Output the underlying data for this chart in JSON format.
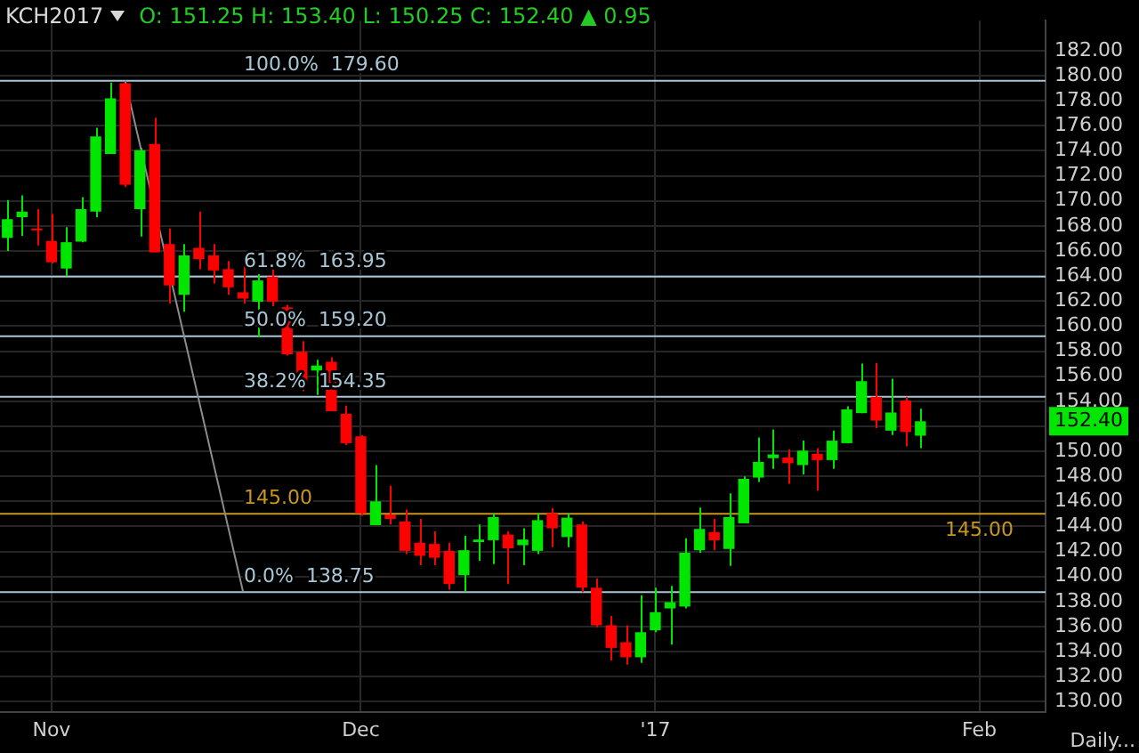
{
  "chart_data": {
    "type": "candlestick",
    "title": "KCH2017",
    "subtitle": "O: 151.25 H: 153.40 L: 150.25 C: 152.40 ▲ 0.95",
    "categories": [
      null,
      null,
      null,
      "Nov",
      null,
      null,
      null,
      null,
      null,
      null,
      null,
      null,
      null,
      null,
      null,
      null,
      null,
      null,
      null,
      null,
      null,
      null,
      null,
      null,
      "Dec",
      null,
      null,
      null,
      null,
      null,
      null,
      null,
      null,
      null,
      null,
      null,
      null,
      null,
      null,
      null,
      null,
      null,
      null,
      null,
      "'17",
      null,
      null,
      null,
      null,
      null,
      null,
      null,
      null,
      null,
      null,
      null,
      null,
      null,
      null,
      null,
      null,
      null,
      null,
      null,
      null,
      null,
      "Feb",
      null,
      null,
      null,
      null
    ],
    "ohlc": [
      [
        167.05,
        170.05,
        166.0,
        168.55
      ],
      [
        168.7,
        170.45,
        167.2,
        169.15
      ],
      [
        167.75,
        169.35,
        166.45,
        167.65
      ],
      [
        166.8,
        168.95,
        165.0,
        165.1
      ],
      [
        164.6,
        167.9,
        164.0,
        166.7
      ],
      [
        166.75,
        170.3,
        166.7,
        169.35
      ],
      [
        169.15,
        175.85,
        168.7,
        175.15
      ],
      [
        173.75,
        179.45,
        173.75,
        178.2
      ],
      [
        179.4,
        179.6,
        171.1,
        171.3
      ],
      [
        169.35,
        174.25,
        167.15,
        174.05
      ],
      [
        174.55,
        176.65,
        165.9,
        165.9
      ],
      [
        166.55,
        167.8,
        161.8,
        163.25
      ],
      [
        162.5,
        166.55,
        161.15,
        165.65
      ],
      [
        166.25,
        169.15,
        164.55,
        165.35
      ],
      [
        165.65,
        166.55,
        163.4,
        164.45
      ],
      [
        164.55,
        165.2,
        162.5,
        163.1
      ],
      [
        162.7,
        165.2,
        161.8,
        162.2
      ],
      [
        161.95,
        164.15,
        159.1,
        163.65
      ],
      [
        163.95,
        164.55,
        161.6,
        161.95
      ],
      [
        161.5,
        161.7,
        157.65,
        157.75
      ],
      [
        157.95,
        158.8,
        154.8,
        155.55
      ],
      [
        156.45,
        157.3,
        154.5,
        156.85
      ],
      [
        157.15,
        157.5,
        153.2,
        153.2
      ],
      [
        153.0,
        153.65,
        150.5,
        150.65
      ],
      [
        151.2,
        151.3,
        144.85,
        145.05
      ],
      [
        144.1,
        148.9,
        144.1,
        146.0
      ],
      [
        144.95,
        147.25,
        144.15,
        144.6
      ],
      [
        144.4,
        145.35,
        141.8,
        142.05
      ],
      [
        142.7,
        144.6,
        140.9,
        141.65
      ],
      [
        142.6,
        143.6,
        140.9,
        141.5
      ],
      [
        142.05,
        142.7,
        138.95,
        139.4
      ],
      [
        140.1,
        143.25,
        138.8,
        142.1
      ],
      [
        142.75,
        144.15,
        141.25,
        142.95
      ],
      [
        142.9,
        145.05,
        141.0,
        144.75
      ],
      [
        143.35,
        143.6,
        139.4,
        142.25
      ],
      [
        142.5,
        143.85,
        140.9,
        142.95
      ],
      [
        142.05,
        145.05,
        141.8,
        144.5
      ],
      [
        145.05,
        145.45,
        142.35,
        143.85
      ],
      [
        143.15,
        145.05,
        142.35,
        144.7
      ],
      [
        144.15,
        144.4,
        138.75,
        139.1
      ],
      [
        139.1,
        139.85,
        135.95,
        136.1
      ],
      [
        136.1,
        136.85,
        133.3,
        134.3
      ],
      [
        134.75,
        136.1,
        132.95,
        133.55
      ],
      [
        133.55,
        138.5,
        133.1,
        135.55
      ],
      [
        135.7,
        139.1,
        135.55,
        137.15
      ],
      [
        137.45,
        139.25,
        134.55,
        137.95
      ],
      [
        137.6,
        143.05,
        137.45,
        141.9
      ],
      [
        142.1,
        145.5,
        141.9,
        143.8
      ],
      [
        143.55,
        144.6,
        142.1,
        142.9
      ],
      [
        142.2,
        146.65,
        140.85,
        144.75
      ],
      [
        144.25,
        148.0,
        144.25,
        147.8
      ],
      [
        147.9,
        151.1,
        147.55,
        149.15
      ],
      [
        149.45,
        151.75,
        148.6,
        149.75
      ],
      [
        149.5,
        150.15,
        147.4,
        149.05
      ],
      [
        148.9,
        150.85,
        148.15,
        150.05
      ],
      [
        149.8,
        150.25,
        146.85,
        149.3
      ],
      [
        149.3,
        151.65,
        148.6,
        150.85
      ],
      [
        150.65,
        153.6,
        150.65,
        153.35
      ],
      [
        153.05,
        157.0,
        153.05,
        155.6
      ],
      [
        154.35,
        157.05,
        151.85,
        152.45
      ],
      [
        151.65,
        155.8,
        151.3,
        153.1
      ],
      [
        154.05,
        154.35,
        150.4,
        151.55
      ],
      [
        151.25,
        153.4,
        150.25,
        152.4
      ],
      null,
      null,
      null,
      null,
      null,
      null,
      null,
      null
    ],
    "colors": [
      "#00e600",
      "#00e600",
      "#ff0000",
      "#ff0000",
      "#00e600",
      "#00e600",
      "#00e600",
      "#00e600",
      "#ff0000",
      "#00e600",
      "#ff0000",
      "#ff0000",
      "#00e600",
      "#ff0000",
      "#ff0000",
      "#ff0000",
      "#ff0000",
      "#00e600",
      "#ff0000",
      "#ff0000",
      "#ff0000",
      "#00e600",
      "#ff0000",
      "#ff0000",
      "#ff0000",
      "#00e600",
      "#ff0000",
      "#ff0000",
      "#ff0000",
      "#ff0000",
      "#ff0000",
      "#00e600",
      "#00e600",
      "#00e600",
      "#ff0000",
      "#00e600",
      "#00e600",
      "#ff0000",
      "#00e600",
      "#ff0000",
      "#ff0000",
      "#ff0000",
      "#ff0000",
      "#00e600",
      "#00e600",
      "#00e600",
      "#00e600",
      "#00e600",
      "#ff0000",
      "#00e600",
      "#00e600",
      "#00e600",
      "#00e600",
      "#ff0000",
      "#00e600",
      "#ff0000",
      "#00e600",
      "#00e600",
      "#00e600",
      "#ff0000",
      "#00e600",
      "#ff0000",
      "#00e600",
      null,
      null,
      null,
      null,
      null,
      null,
      null,
      null
    ],
    "series": [
      {
        "type": "line",
        "color": "#8c8c8c",
        "values": [
          null,
          null,
          null,
          null,
          null,
          null,
          null,
          null,
          179.6,
          null,
          null,
          null,
          null,
          null,
          null,
          null,
          138.8,
          null,
          null,
          null,
          null,
          null,
          null,
          null,
          null,
          null,
          null,
          null,
          null,
          null,
          null,
          null,
          null,
          null,
          null,
          null,
          null,
          null,
          null,
          null,
          null,
          null,
          null,
          null,
          null,
          null,
          null,
          null,
          null,
          null,
          null,
          null,
          null,
          null,
          null,
          null,
          null,
          null,
          null,
          null,
          null,
          null,
          null,
          null,
          null,
          null,
          null,
          null,
          null,
          null,
          null
        ]
      }
    ],
    "ylim": [
      129.2,
      184.4
    ],
    "yticks": [
      {
        "value": 130,
        "label": "130.00"
      },
      {
        "value": 132,
        "label": "132.00"
      },
      {
        "value": 134,
        "label": "134.00"
      },
      {
        "value": 136,
        "label": "136.00"
      },
      {
        "value": 138,
        "label": "138.00"
      },
      {
        "value": 140,
        "label": "140.00"
      },
      {
        "value": 142,
        "label": "142.00"
      },
      {
        "value": 144,
        "label": "144.00"
      },
      {
        "value": 146,
        "label": "146.00"
      },
      {
        "value": 148,
        "label": "148.00"
      },
      {
        "value": 150,
        "label": "150.00"
      },
      {
        "value": 152,
        "label": null
      },
      {
        "value": 154,
        "label": "154.00"
      },
      {
        "value": 156,
        "label": "156.00"
      },
      {
        "value": 158,
        "label": "158.00"
      },
      {
        "value": 160,
        "label": "160.00"
      },
      {
        "value": 162,
        "label": "162.00"
      },
      {
        "value": 164,
        "label": "164.00"
      },
      {
        "value": 166,
        "label": "166.00"
      },
      {
        "value": 168,
        "label": "168.00"
      },
      {
        "value": 170,
        "label": "170.00"
      },
      {
        "value": 172,
        "label": "172.00"
      },
      {
        "value": 174,
        "label": "174.00"
      },
      {
        "value": 176,
        "label": "176.00"
      },
      {
        "value": 178,
        "label": "178.00"
      },
      {
        "value": 180,
        "label": "180.00"
      },
      {
        "value": 182,
        "label": "182.00"
      }
    ],
    "ref_lines": [
      {
        "axis": "y",
        "value": 179.6,
        "label": "100.0%  179.60",
        "color": "#a9c6d6"
      },
      {
        "axis": "y",
        "value": 163.95,
        "label": "61.8%  163.95",
        "color": "#a9c6d6"
      },
      {
        "axis": "y",
        "value": 159.2,
        "label": "50.0%  159.20",
        "color": "#a9c6d6"
      },
      {
        "axis": "y",
        "value": 154.35,
        "label": "38.2%  154.35",
        "color": "#a9c6d6"
      },
      {
        "axis": "y",
        "value": 138.75,
        "label": "0.0%  138.75",
        "color": "#a9c6d6"
      },
      {
        "axis": "y",
        "value": 145.0,
        "label": "145.00",
        "color": "#c8961e"
      }
    ],
    "annotations": [
      "Daily...",
      {
        "text": "145.00",
        "x": "Feb",
        "y": 145.0
      },
      "152.40"
    ],
    "grid": true,
    "legend": false,
    "marker": "none"
  }
}
